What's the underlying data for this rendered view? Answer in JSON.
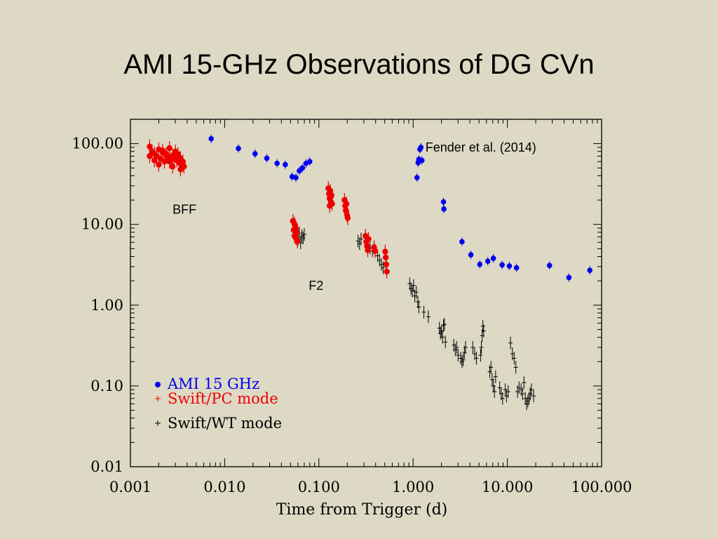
{
  "slide": {
    "title": "AMI 15-GHz Observations of DG CVn"
  },
  "colors": {
    "background": "#ddd9c4",
    "ami": "#0000ee",
    "swift_pc": "#ee0000",
    "swift_wt": "#000000"
  },
  "chart_data": {
    "type": "scatter",
    "title": "",
    "xlabel": "Time from Trigger (d)",
    "ylabel": "",
    "xscale": "log",
    "yscale": "log",
    "xlim": [
      0.001,
      100
    ],
    "ylim": [
      0.01,
      200
    ],
    "x_tick_labels": [
      "0.001",
      "0.010",
      "0.100",
      "1.000",
      "10.000",
      "100.000"
    ],
    "y_tick_labels": [
      "100.00",
      "10.00",
      "1.00",
      "0.10",
      "0.01"
    ],
    "x_ticks": [
      0.001,
      0.01,
      0.1,
      1,
      10,
      100
    ],
    "y_ticks": [
      100,
      10,
      1,
      0.1,
      0.01
    ],
    "grid": false,
    "legend_position": "bottom-left",
    "annotations": [
      {
        "text": "Fender et al. (2014)",
        "x": 1.35,
        "y": 80
      },
      {
        "text": "BFF",
        "x": 0.0028,
        "y": 13.5
      },
      {
        "text": "F2",
        "x": 0.078,
        "y": 1.55
      }
    ],
    "series": [
      {
        "name": "AMI 15 GHz",
        "marker": "dot",
        "x": [
          0.0072,
          0.014,
          0.021,
          0.028,
          0.036,
          0.044,
          0.052,
          0.057,
          0.062,
          0.067,
          0.073,
          0.08,
          1.1,
          1.13,
          1.15,
          1.18,
          1.21,
          1.24,
          2.1,
          2.12,
          3.3,
          4.1,
          5.1,
          6.2,
          7.1,
          8.8,
          10.5,
          12.5,
          28.0,
          45.0,
          75.0
        ],
        "y": [
          115,
          87,
          75,
          66,
          57,
          55,
          39,
          38,
          46,
          50,
          57,
          60,
          38,
          58,
          64,
          85,
          90,
          62,
          19,
          15.5,
          6.1,
          4.2,
          3.2,
          3.5,
          3.8,
          3.15,
          3.05,
          2.9,
          3.1,
          2.2,
          2.7
        ]
      },
      {
        "name": "Swift/PC mode",
        "marker": "plus",
        "groups": [
          {
            "x_range": [
              0.0015,
              0.0038
            ],
            "y_range": [
              42,
              100
            ]
          },
          {
            "x_range": [
              0.052,
              0.06
            ],
            "y_range": [
              5.5,
              12
            ]
          },
          {
            "x_range": [
              0.125,
              0.14
            ],
            "y_range": [
              16,
              30
            ]
          },
          {
            "x_range": [
              0.185,
              0.205
            ],
            "y_range": [
              11,
              22
            ]
          },
          {
            "x_range": [
              0.31,
              0.34
            ],
            "y_range": [
              4.2,
              7.5
            ]
          },
          {
            "x_range": [
              0.38,
              0.4
            ],
            "y_range": [
              4.5,
              5.5
            ]
          },
          {
            "x_range": [
              0.5,
              0.53
            ],
            "y_range": [
              2.1,
              5.0
            ]
          }
        ],
        "x": [
          0.0016,
          0.0017,
          0.0018,
          0.0019,
          0.002,
          0.0021,
          0.0022,
          0.0023,
          0.0024,
          0.0025,
          0.0026,
          0.0027,
          0.0028,
          0.0029,
          0.003,
          0.0031,
          0.0032,
          0.0033,
          0.0034,
          0.0035,
          0.0036,
          0.0037,
          0.0016,
          0.0018,
          0.002,
          0.0022,
          0.0024,
          0.0026,
          0.0028,
          0.003,
          0.0032,
          0.0034,
          0.0036,
          0.053,
          0.054,
          0.055,
          0.056,
          0.057,
          0.058,
          0.059,
          0.055,
          0.057,
          0.126,
          0.128,
          0.13,
          0.132,
          0.134,
          0.136,
          0.138,
          0.13,
          0.134,
          0.187,
          0.19,
          0.193,
          0.196,
          0.199,
          0.202,
          0.195,
          0.312,
          0.318,
          0.324,
          0.33,
          0.336,
          0.385,
          0.395,
          0.505,
          0.512,
          0.518,
          0.525
        ],
        "y": [
          92,
          80,
          75,
          70,
          85,
          65,
          78,
          60,
          72,
          68,
          88,
          64,
          70,
          66,
          80,
          62,
          74,
          58,
          66,
          54,
          60,
          52,
          70,
          62,
          55,
          82,
          74,
          60,
          52,
          76,
          68,
          48,
          55,
          11,
          8.5,
          7.2,
          9.6,
          6.8,
          7.9,
          6.2,
          10.2,
          8.8,
          28,
          24,
          21,
          26,
          19,
          23,
          18,
          17,
          22,
          20,
          17,
          15,
          18,
          13,
          12,
          14.5,
          7.2,
          6.1,
          5.4,
          4.8,
          6.6,
          5.2,
          4.7,
          4.6,
          3.9,
          3.2,
          2.6
        ]
      },
      {
        "name": "Swift/WT mode",
        "marker": "plus",
        "x": [
          0.06,
          0.062,
          0.064,
          0.066,
          0.068,
          0.07,
          0.26,
          0.27,
          0.28,
          0.35,
          0.37,
          0.42,
          0.44,
          0.46,
          0.48,
          0.92,
          0.95,
          0.98,
          1.01,
          1.04,
          1.08,
          1.12,
          1.15,
          1.3,
          1.45,
          1.9,
          1.95,
          2.0,
          2.05,
          2.1,
          2.15,
          2.2,
          2.7,
          2.8,
          2.9,
          3.0,
          3.2,
          3.3,
          3.4,
          3.5,
          3.6,
          4.3,
          4.5,
          4.7,
          5.2,
          5.3,
          5.4,
          5.5,
          5.6,
          6.5,
          6.7,
          6.9,
          7.1,
          7.3,
          7.5,
          8.3,
          8.6,
          8.9,
          9.5,
          9.8,
          10.2,
          10.8,
          11.3,
          11.8,
          12.3,
          12.8,
          13.3,
          14.0,
          14.5,
          15.0,
          15.5,
          16.0,
          16.5,
          17.0,
          17.5,
          18.0,
          19.0
        ],
        "y": [
          6.5,
          7.8,
          5.9,
          7.2,
          6.8,
          7.5,
          6.2,
          5.8,
          6.6,
          5.1,
          4.7,
          4.1,
          3.6,
          3.2,
          2.9,
          1.85,
          1.6,
          1.5,
          1.75,
          1.3,
          1.45,
          1.1,
          0.95,
          0.82,
          0.72,
          0.52,
          0.45,
          0.48,
          0.4,
          0.56,
          0.58,
          0.35,
          0.32,
          0.28,
          0.3,
          0.24,
          0.22,
          0.2,
          0.21,
          0.26,
          0.3,
          0.3,
          0.25,
          0.22,
          0.24,
          0.3,
          0.42,
          0.55,
          0.48,
          0.15,
          0.17,
          0.12,
          0.1,
          0.085,
          0.13,
          0.095,
          0.08,
          0.07,
          0.09,
          0.075,
          0.085,
          0.34,
          0.25,
          0.22,
          0.17,
          0.085,
          0.095,
          0.09,
          0.08,
          0.11,
          0.07,
          0.06,
          0.065,
          0.07,
          0.08,
          0.09,
          0.075
        ]
      }
    ]
  }
}
